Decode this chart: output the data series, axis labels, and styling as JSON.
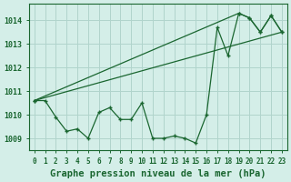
{
  "title": "Graphe pression niveau de la mer (hPa)",
  "bg_color": "#d4eee8",
  "grid_color": "#b0d4cc",
  "line_color": "#1a6630",
  "x_ticks": [
    0,
    1,
    2,
    3,
    4,
    5,
    6,
    7,
    8,
    9,
    10,
    11,
    12,
    13,
    14,
    15,
    16,
    17,
    18,
    19,
    20,
    21,
    22,
    23
  ],
  "ylim": [
    1008.5,
    1014.7
  ],
  "yticks": [
    1009,
    1010,
    1011,
    1012,
    1013,
    1014
  ],
  "series1": [
    1010.6,
    1010.6,
    1009.9,
    1009.3,
    1009.4,
    1009.0,
    1010.1,
    1010.3,
    1009.8,
    1009.8,
    1010.5,
    1009.0,
    1009.0,
    1009.1,
    1009.0,
    1008.8,
    1010.0,
    1013.7,
    1012.5,
    1014.3,
    1014.1,
    1013.5,
    1014.2,
    1013.5
  ],
  "series2_x": [
    0,
    19,
    20,
    21,
    22,
    23
  ],
  "series2_y": [
    1010.6,
    1014.3,
    1014.1,
    1013.5,
    1014.2,
    1013.5
  ],
  "series3_x": [
    0,
    23
  ],
  "series3_y": [
    1010.6,
    1013.5
  ]
}
